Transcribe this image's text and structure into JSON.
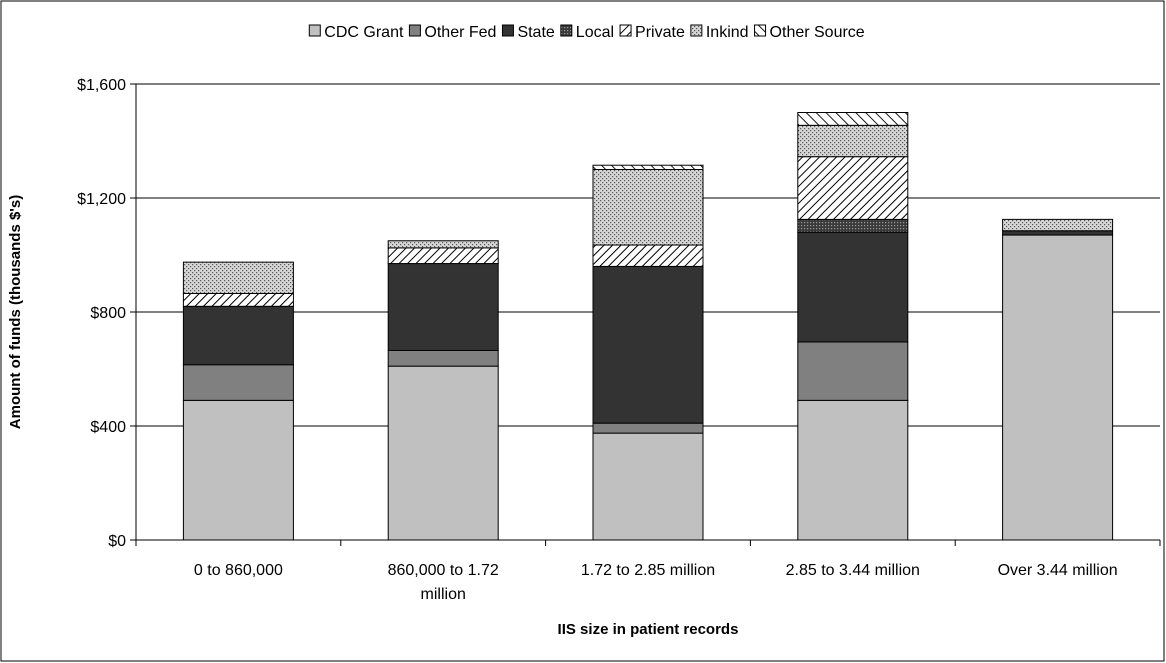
{
  "chart_data": {
    "type": "bar",
    "stacked": true,
    "title": "",
    "xlabel": "IIS size in patient records",
    "ylabel": "Amount of funds (thousands $'s)",
    "ylim": [
      0,
      1600
    ],
    "y_ticks": [
      0,
      400,
      800,
      1200,
      1600
    ],
    "y_tick_labels": [
      "$0",
      "$400",
      "$800",
      "$1,200",
      "$1,600"
    ],
    "grid": true,
    "legend_position": "top",
    "categories": [
      [
        "0 to 860,000"
      ],
      [
        "860,000 to 1.72",
        "million"
      ],
      [
        "1.72 to 2.85 million"
      ],
      [
        "2.85 to 3.44 million"
      ],
      [
        "Over 3.44 million"
      ]
    ],
    "series": [
      {
        "name": "CDC Grant",
        "color": "#c0c0c0",
        "pattern": "solid",
        "values": [
          490,
          610,
          375,
          490,
          1070
        ]
      },
      {
        "name": "Other Fed",
        "color": "#808080",
        "pattern": "solid",
        "values": [
          125,
          55,
          35,
          205,
          0
        ]
      },
      {
        "name": "State",
        "color": "#333333",
        "pattern": "solid",
        "values": [
          205,
          305,
          550,
          385,
          15
        ]
      },
      {
        "name": "Local",
        "color": "#555555",
        "pattern": "dots-dense",
        "values": [
          0,
          0,
          0,
          45,
          0
        ]
      },
      {
        "name": "Private",
        "color": "#ffffff",
        "pattern": "diagonal",
        "values": [
          45,
          55,
          75,
          220,
          0
        ]
      },
      {
        "name": "Inkind",
        "color": "#b0b0b0",
        "pattern": "dots",
        "values": [
          110,
          25,
          265,
          110,
          40
        ]
      },
      {
        "name": "Other Source",
        "color": "#ffffff",
        "pattern": "diagonal-wide",
        "values": [
          0,
          0,
          15,
          45,
          0
        ]
      }
    ]
  }
}
